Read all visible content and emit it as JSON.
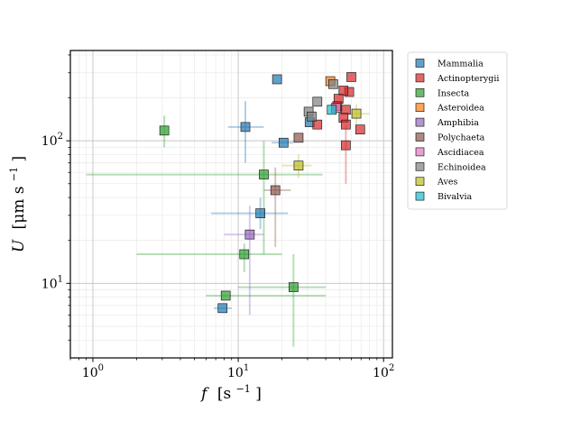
{
  "chart_data": {
    "type": "scatter",
    "xscale": "log",
    "yscale": "log",
    "xlim": [
      0.7,
      115
    ],
    "ylim": [
      3,
      430
    ],
    "xlabel_base": "f",
    "xlabel_unit": "[s",
    "xlabel_exp": "−1",
    "xlabel_close": "]",
    "ylabel_base": "U",
    "ylabel_unit": "[μm s",
    "ylabel_exp": "−1",
    "ylabel_close": "]",
    "xticks": [
      {
        "value": 1,
        "base": "10",
        "exp": "0"
      },
      {
        "value": 10,
        "base": "10",
        "exp": "1"
      },
      {
        "value": 100,
        "base": "10",
        "exp": "2"
      }
    ],
    "yticks": [
      {
        "value": 10,
        "base": "10",
        "exp": "1"
      },
      {
        "value": 100,
        "base": "10",
        "exp": "2"
      }
    ],
    "grid": true,
    "legend_position": "outside-right",
    "series": [
      {
        "name": "Mammalia",
        "color": "#1f77b4",
        "points": [
          {
            "x": 18.5,
            "y": 270
          },
          {
            "x": 11.2,
            "y": 125,
            "xerr": [
              8.5,
              15
            ],
            "yerr": [
              70,
              190
            ]
          },
          {
            "x": 20.5,
            "y": 97,
            "xerr": [
              17,
              24
            ]
          },
          {
            "x": 31,
            "y": 135
          },
          {
            "x": 14.2,
            "y": 31,
            "xerr": [
              6.5,
              22
            ],
            "yerr": [
              24,
              40
            ]
          },
          {
            "x": 7.8,
            "y": 6.7,
            "xerr": [
              6.8,
              9
            ]
          }
        ]
      },
      {
        "name": "Actinopterygii",
        "color": "#d62728",
        "points": [
          {
            "x": 60,
            "y": 280
          },
          {
            "x": 58,
            "y": 220
          },
          {
            "x": 53,
            "y": 225
          },
          {
            "x": 49,
            "y": 197
          },
          {
            "x": 55,
            "y": 165
          },
          {
            "x": 48,
            "y": 175
          },
          {
            "x": 53,
            "y": 145
          },
          {
            "x": 55,
            "y": 130
          },
          {
            "x": 35,
            "y": 130
          },
          {
            "x": 69,
            "y": 120
          },
          {
            "x": 55,
            "y": 93,
            "yerr": [
              50,
              130
            ]
          }
        ]
      },
      {
        "name": "Insecta",
        "color": "#2ca02c",
        "points": [
          {
            "x": 3.1,
            "y": 118,
            "yerr": [
              90,
              150
            ]
          },
          {
            "x": 15,
            "y": 58,
            "xerr": [
              0.9,
              38
            ],
            "yerr": [
              16,
              100
            ]
          },
          {
            "x": 11,
            "y": 16,
            "xerr": [
              2,
              20
            ],
            "yerr": [
              12,
              19
            ]
          },
          {
            "x": 8.2,
            "y": 8.2,
            "xerr": [
              6,
              40
            ]
          },
          {
            "x": 24,
            "y": 9.4,
            "xerr": [
              10,
              40
            ],
            "yerr": [
              3.6,
              16
            ]
          }
        ]
      },
      {
        "name": "Asteroidea",
        "color": "#ff7f0e",
        "points": [
          {
            "x": 43,
            "y": 262
          }
        ]
      },
      {
        "name": "Amphibia",
        "color": "#9467bd",
        "points": [
          {
            "x": 12,
            "y": 22,
            "xerr": [
              8,
              15
            ],
            "yerr": [
              6,
              35
            ]
          }
        ]
      },
      {
        "name": "Polychaeta",
        "color": "#8c564b",
        "points": [
          {
            "x": 26,
            "y": 105
          },
          {
            "x": 18,
            "y": 45,
            "xerr": [
              15,
              23
            ],
            "yerr": [
              18,
              65
            ]
          }
        ]
      },
      {
        "name": "Ascidiacea",
        "color": "#e377c2",
        "points": [
          {
            "x": 47,
            "y": 170
          }
        ]
      },
      {
        "name": "Echinoidea",
        "color": "#7f7f7f",
        "points": [
          {
            "x": 35,
            "y": 188
          },
          {
            "x": 45,
            "y": 250
          },
          {
            "x": 30.5,
            "y": 160
          },
          {
            "x": 32,
            "y": 148
          }
        ]
      },
      {
        "name": "Aves",
        "color": "#bcbd22",
        "points": [
          {
            "x": 26,
            "y": 67,
            "xerr": [
              20,
              32
            ],
            "yerr": [
              55,
              80
            ]
          },
          {
            "x": 65,
            "y": 155,
            "xerr": [
              52,
              80
            ],
            "yerr": [
              130,
              180
            ]
          }
        ]
      },
      {
        "name": "Bivalvia",
        "color": "#17becf",
        "points": [
          {
            "x": 44,
            "y": 165
          }
        ]
      }
    ]
  }
}
